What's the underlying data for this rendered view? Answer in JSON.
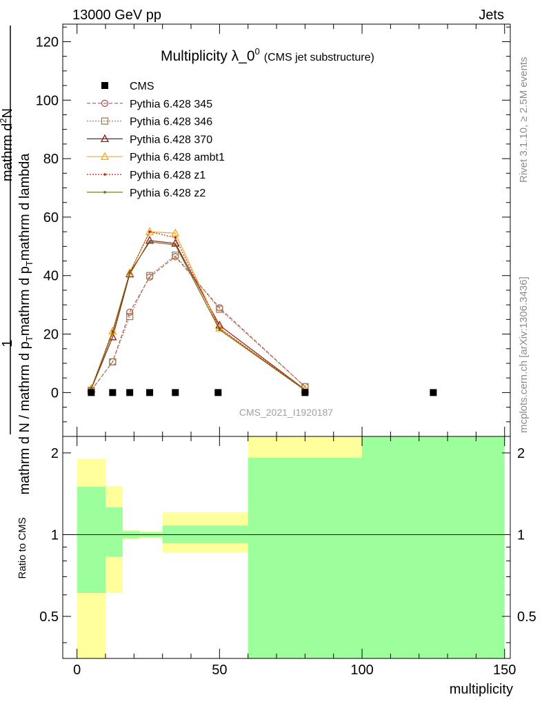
{
  "header": {
    "left": "13000 GeV pp",
    "right": "Jets"
  },
  "side": {
    "rivet": "Rivet 3.1.10, ≥ 2.5M events",
    "mcplots": "mcplots.cern.ch [arXiv:1306.3436]"
  },
  "chart_data": [
    {
      "type": "line",
      "title_main": "Multiplicity λ_0",
      "title_sup": "0",
      "title_paren": "(CMS jet substructure)",
      "watermark": "CMS_2021_I1920187",
      "ylabel_parts": {
        "frac1": "1",
        "den1": "mathrm d N / mathrm d p",
        "num2": "mathrm d",
        "num2_sup": "2",
        "num2_rest": "N",
        "den2": "mathrm d p",
        "den2_rest": "mathrm d lambda",
        "sub_T": "T"
      },
      "xlim": [
        -5,
        152
      ],
      "ylim": [
        -15,
        126
      ],
      "yticks": [
        0,
        20,
        40,
        60,
        80,
        100,
        120
      ],
      "ytick_labels": [
        "0",
        "20",
        "40",
        "60",
        "80",
        "100",
        "120"
      ],
      "xticks": [
        0,
        50,
        100,
        150
      ],
      "legend_position": "top-left",
      "cms": {
        "name": "CMS",
        "x": [
          5,
          12.5,
          18.5,
          25.5,
          34.5,
          49.5,
          80,
          125
        ],
        "y": [
          0,
          0,
          0,
          0,
          0,
          0,
          0,
          0
        ],
        "marker": "square",
        "color": "#000000"
      },
      "series": [
        {
          "name": "Pythia 6.428 345",
          "marker": "circle",
          "dash": "5,3",
          "color": "#b5545c",
          "x": [
            5,
            12.5,
            18.5,
            25.5,
            34.5,
            50,
            80
          ],
          "y": [
            0.8,
            10.5,
            27.5,
            39.5,
            46.5,
            29,
            2
          ]
        },
        {
          "name": "Pythia 6.428 346",
          "marker": "square-open",
          "dash": "2,2",
          "color": "#a08050",
          "x": [
            5,
            12.5,
            18.5,
            25.5,
            34.5,
            50,
            80
          ],
          "y": [
            0.8,
            10.5,
            26,
            40,
            47,
            28.5,
            2
          ]
        },
        {
          "name": "Pythia 6.428 370",
          "marker": "triangle",
          "dash": "",
          "color": "#8b1a1a",
          "x": [
            5,
            12.5,
            18.5,
            25.5,
            34.5,
            50,
            80
          ],
          "y": [
            1.2,
            19,
            40.5,
            52,
            51,
            23,
            1
          ]
        },
        {
          "name": "Pythia 6.428 ambt1",
          "marker": "triangle",
          "dash": "",
          "color": "#f5a623",
          "x": [
            5,
            12.5,
            18.5,
            25.5,
            34.5,
            50,
            80
          ],
          "y": [
            1.3,
            21,
            41,
            55,
            54.5,
            22,
            0.9
          ]
        },
        {
          "name": "Pythia 6.428 z1",
          "marker": "dot",
          "dash": "2,2",
          "color": "#cc2200",
          "x": [
            5,
            12.5,
            18.5,
            25.5,
            34.5,
            50,
            80
          ],
          "y": [
            1.5,
            21,
            41,
            55,
            53,
            22,
            0.9
          ]
        },
        {
          "name": "Pythia 6.428 z2",
          "marker": "dot",
          "dash": "",
          "color": "#6b6b10",
          "x": [
            5,
            12.5,
            18.5,
            25.5,
            34.5,
            50,
            80
          ],
          "y": [
            1.3,
            20.5,
            41,
            51.5,
            50.5,
            21.5,
            0.8
          ]
        }
      ]
    },
    {
      "type": "area",
      "ylabel": "Ratio to CMS",
      "xlabel": "multiplicity",
      "xlim": [
        -5,
        152
      ],
      "ylim": [
        0.35,
        2.3
      ],
      "yscale": "log",
      "yticks": [
        0.5,
        1,
        2
      ],
      "ytick_labels": [
        "0.5",
        "1",
        "2"
      ],
      "xticks": [
        0,
        50,
        100,
        150
      ],
      "xtick_labels": [
        "0",
        "50",
        "100",
        "150"
      ],
      "reference_line": 1,
      "band_colors": {
        "inner": "#9cff9c",
        "outer": "#ffff9c"
      },
      "bands": [
        {
          "x0": 0,
          "x1": 10,
          "inner": [
            0.61,
            1.5
          ],
          "outer": [
            0.35,
            1.9
          ]
        },
        {
          "x0": 10,
          "x1": 16,
          "inner": [
            0.83,
            1.26
          ],
          "outer": [
            0.61,
            1.51
          ]
        },
        {
          "x0": 16,
          "x1": 22,
          "inner": [
            0.97,
            1.03
          ],
          "outer": [
            0.96,
            1.04
          ]
        },
        {
          "x0": 22,
          "x1": 30,
          "inner": [
            0.98,
            1.02
          ],
          "outer": [
            0.97,
            1.03
          ]
        },
        {
          "x0": 30,
          "x1": 60,
          "inner": [
            0.93,
            1.08
          ],
          "outer": [
            0.86,
            1.21
          ]
        },
        {
          "x0": 60,
          "x1": 100,
          "inner": [
            0.35,
            1.92
          ],
          "outer": [
            0.35,
            2.3
          ]
        },
        {
          "x0": 100,
          "x1": 150,
          "inner": [
            0.35,
            2.3
          ],
          "outer": [
            0.35,
            2.3
          ]
        }
      ]
    }
  ]
}
